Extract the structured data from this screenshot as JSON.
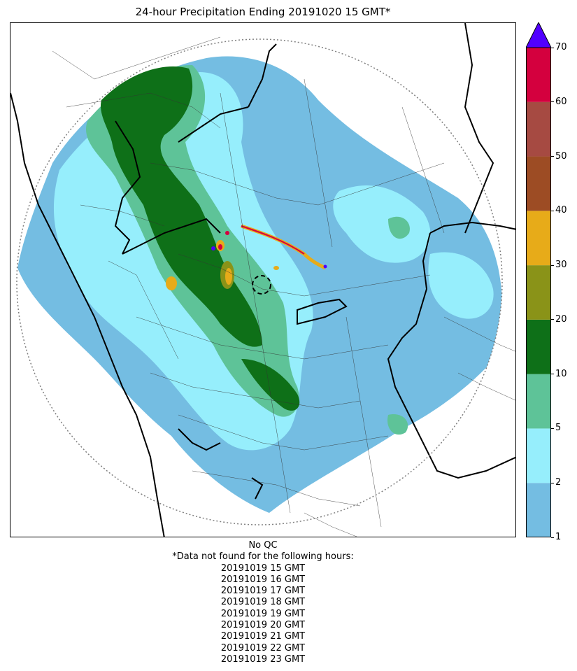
{
  "title": "24-hour Precipitation Ending 20191020 15 GMT*",
  "colorbar": {
    "ticks": [
      "1",
      "2",
      "5",
      "10",
      "20",
      "30",
      "40",
      "50",
      "60",
      "70"
    ],
    "colors": [
      "#74bde2",
      "#96eefc",
      "#5ec398",
      "#0e7018",
      "#8a9318",
      "#e7ab19",
      "#9d4c24",
      "#a64a42",
      "#d4003e"
    ],
    "over_color": "#5100ff",
    "unit": ""
  },
  "notes": {
    "qc": "No QC",
    "missing_header": "*Data not found for the following hours:",
    "missing_hours": [
      "20191019 15 GMT",
      "20191019 16 GMT",
      "20191019 17 GMT",
      "20191019 18 GMT",
      "20191019 19 GMT",
      "20191019 20 GMT",
      "20191019 21 GMT",
      "20191019 22 GMT",
      "20191019 23 GMT"
    ]
  },
  "map": {
    "layers": [
      "precipitation-field",
      "district-boundaries",
      "state-boundaries",
      "coastline",
      "radar-range-ring",
      "radar-site-marker"
    ],
    "range_ring_style": "dotted-gray"
  }
}
